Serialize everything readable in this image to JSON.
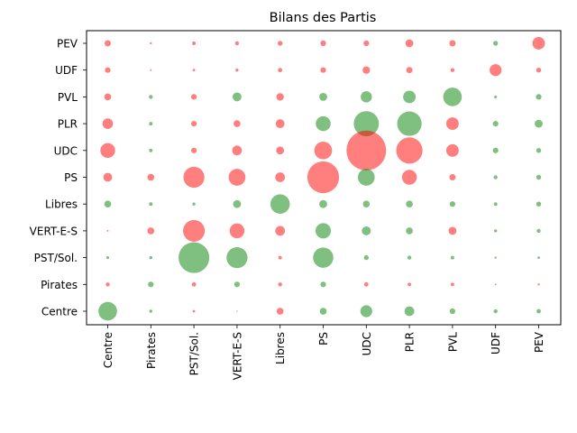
{
  "chart_data": {
    "type": "scatter",
    "title": "Bilans des Partis",
    "xlabel": "",
    "ylabel": "",
    "grid": false,
    "categories_x": [
      "Centre",
      "Pirates",
      "PST/Sol.",
      "VERT-E-S",
      "Libres",
      "PS",
      "UDC",
      "PLR",
      "PVL",
      "UDF",
      "PEV"
    ],
    "categories_y": [
      "Centre",
      "Pirates",
      "PST/Sol.",
      "VERT-E-S",
      "Libres",
      "PS",
      "UDC",
      "PLR",
      "PVL",
      "UDF",
      "PEV"
    ],
    "colors": {
      "positive": "#008000",
      "negative": "#ff0000",
      "opacity": 0.5
    },
    "value_note": "",
    "points": [
      {
        "x": "Centre",
        "y": "PEV",
        "value": -2.5
      },
      {
        "x": "Pirates",
        "y": "PEV",
        "value": -0.3
      },
      {
        "x": "PST/Sol.",
        "y": "PEV",
        "value": -0.8
      },
      {
        "x": "VERT-E-S",
        "y": "PEV",
        "value": -1.0
      },
      {
        "x": "Libres",
        "y": "PEV",
        "value": -1.5
      },
      {
        "x": "PS",
        "y": "PEV",
        "value": -2.0
      },
      {
        "x": "UDC",
        "y": "PEV",
        "value": -2.0
      },
      {
        "x": "PLR",
        "y": "PEV",
        "value": -4.0
      },
      {
        "x": "PVL",
        "y": "PEV",
        "value": -2.5
      },
      {
        "x": "UDF",
        "y": "PEV",
        "value": 1.5
      },
      {
        "x": "PEV",
        "y": "PEV",
        "value": -10.0
      },
      {
        "x": "Centre",
        "y": "UDF",
        "value": -2.0
      },
      {
        "x": "Pirates",
        "y": "UDF",
        "value": -0.2
      },
      {
        "x": "PST/Sol.",
        "y": "UDF",
        "value": -0.4
      },
      {
        "x": "VERT-E-S",
        "y": "UDF",
        "value": -0.6
      },
      {
        "x": "Libres",
        "y": "UDF",
        "value": -1.2
      },
      {
        "x": "PS",
        "y": "UDF",
        "value": -2.0
      },
      {
        "x": "UDC",
        "y": "UDF",
        "value": -3.5
      },
      {
        "x": "PLR",
        "y": "UDF",
        "value": -2.5
      },
      {
        "x": "PVL",
        "y": "UDF",
        "value": -1.0
      },
      {
        "x": "UDF",
        "y": "UDF",
        "value": -9.0
      },
      {
        "x": "PEV",
        "y": "UDF",
        "value": -1.5
      },
      {
        "x": "Centre",
        "y": "PVL",
        "value": -3.0
      },
      {
        "x": "Pirates",
        "y": "PVL",
        "value": 1.0
      },
      {
        "x": "PST/Sol.",
        "y": "PVL",
        "value": -2.0
      },
      {
        "x": "VERT-E-S",
        "y": "PVL",
        "value": 5.0
      },
      {
        "x": "Libres",
        "y": "PVL",
        "value": -3.5
      },
      {
        "x": "PS",
        "y": "PVL",
        "value": 4.0
      },
      {
        "x": "UDC",
        "y": "PVL",
        "value": 8.0
      },
      {
        "x": "PLR",
        "y": "PVL",
        "value": 10.0
      },
      {
        "x": "PVL",
        "y": "PVL",
        "value": 22.0
      },
      {
        "x": "UDF",
        "y": "PVL",
        "value": 0.5
      },
      {
        "x": "PEV",
        "y": "PVL",
        "value": 2.0
      },
      {
        "x": "Centre",
        "y": "PLR",
        "value": -7.0
      },
      {
        "x": "Pirates",
        "y": "PLR",
        "value": 0.8
      },
      {
        "x": "PST/Sol.",
        "y": "PLR",
        "value": -2.0
      },
      {
        "x": "VERT-E-S",
        "y": "PLR",
        "value": -3.0
      },
      {
        "x": "Libres",
        "y": "PLR",
        "value": -5.0
      },
      {
        "x": "PS",
        "y": "PLR",
        "value": 14.0
      },
      {
        "x": "UDC",
        "y": "PLR",
        "value": 40.0
      },
      {
        "x": "PLR",
        "y": "PLR",
        "value": 38.0
      },
      {
        "x": "PVL",
        "y": "PLR",
        "value": -10.0
      },
      {
        "x": "UDF",
        "y": "PLR",
        "value": 2.0
      },
      {
        "x": "PEV",
        "y": "PLR",
        "value": 4.0
      },
      {
        "x": "Centre",
        "y": "UDC",
        "value": -14.0
      },
      {
        "x": "Pirates",
        "y": "UDC",
        "value": 0.8
      },
      {
        "x": "PST/Sol.",
        "y": "UDC",
        "value": -2.0
      },
      {
        "x": "VERT-E-S",
        "y": "UDC",
        "value": -6.0
      },
      {
        "x": "Libres",
        "y": "UDC",
        "value": -4.0
      },
      {
        "x": "PS",
        "y": "UDC",
        "value": -20.0
      },
      {
        "x": "UDC",
        "y": "UDC",
        "value": -100.0
      },
      {
        "x": "PLR",
        "y": "UDC",
        "value": -44.0
      },
      {
        "x": "PVL",
        "y": "UDC",
        "value": -10.0
      },
      {
        "x": "UDF",
        "y": "UDC",
        "value": 2.0
      },
      {
        "x": "PEV",
        "y": "UDC",
        "value": 1.5
      },
      {
        "x": "Centre",
        "y": "PS",
        "value": -5.0
      },
      {
        "x": "Pirates",
        "y": "PS",
        "value": -3.0
      },
      {
        "x": "PST/Sol.",
        "y": "PS",
        "value": -28.0
      },
      {
        "x": "VERT-E-S",
        "y": "PS",
        "value": -18.0
      },
      {
        "x": "Libres",
        "y": "PS",
        "value": -6.0
      },
      {
        "x": "PS",
        "y": "PS",
        "value": -64.0
      },
      {
        "x": "UDC",
        "y": "PS",
        "value": 18.0
      },
      {
        "x": "PLR",
        "y": "PS",
        "value": -14.0
      },
      {
        "x": "PVL",
        "y": "PS",
        "value": -2.5
      },
      {
        "x": "UDF",
        "y": "PS",
        "value": 1.0
      },
      {
        "x": "PEV",
        "y": "PS",
        "value": 1.5
      },
      {
        "x": "Centre",
        "y": "Libres",
        "value": 3.0
      },
      {
        "x": "Pirates",
        "y": "Libres",
        "value": 0.8
      },
      {
        "x": "PST/Sol.",
        "y": "Libres",
        "value": 0.6
      },
      {
        "x": "VERT-E-S",
        "y": "Libres",
        "value": 4.0
      },
      {
        "x": "Libres",
        "y": "Libres",
        "value": 24.0
      },
      {
        "x": "PS",
        "y": "Libres",
        "value": 4.0
      },
      {
        "x": "UDC",
        "y": "Libres",
        "value": 3.0
      },
      {
        "x": "PLR",
        "y": "Libres",
        "value": 3.0
      },
      {
        "x": "PVL",
        "y": "Libres",
        "value": 2.0
      },
      {
        "x": "UDF",
        "y": "Libres",
        "value": 0.8
      },
      {
        "x": "PEV",
        "y": "Libres",
        "value": 1.5
      },
      {
        "x": "Centre",
        "y": "VERT-E-S",
        "value": -0.2
      },
      {
        "x": "Pirates",
        "y": "VERT-E-S",
        "value": -3.0
      },
      {
        "x": "PST/Sol.",
        "y": "VERT-E-S",
        "value": -30.0
      },
      {
        "x": "VERT-E-S",
        "y": "VERT-E-S",
        "value": -14.0
      },
      {
        "x": "Libres",
        "y": "VERT-E-S",
        "value": -6.0
      },
      {
        "x": "PS",
        "y": "VERT-E-S",
        "value": 15.0
      },
      {
        "x": "UDC",
        "y": "VERT-E-S",
        "value": 5.0
      },
      {
        "x": "PLR",
        "y": "VERT-E-S",
        "value": 3.0
      },
      {
        "x": "PVL",
        "y": "VERT-E-S",
        "value": -4.0
      },
      {
        "x": "UDF",
        "y": "VERT-E-S",
        "value": 0.6
      },
      {
        "x": "PEV",
        "y": "VERT-E-S",
        "value": 1.0
      },
      {
        "x": "Centre",
        "y": "PST/Sol.",
        "value": 0.5
      },
      {
        "x": "Pirates",
        "y": "PST/Sol.",
        "value": 0.6
      },
      {
        "x": "PST/Sol.",
        "y": "PST/Sol.",
        "value": 60.0
      },
      {
        "x": "VERT-E-S",
        "y": "PST/Sol.",
        "value": 28.0
      },
      {
        "x": "Libres",
        "y": "PST/Sol.",
        "value": -0.8
      },
      {
        "x": "PS",
        "y": "PST/Sol.",
        "value": 26.0
      },
      {
        "x": "UDC",
        "y": "PST/Sol.",
        "value": 1.5
      },
      {
        "x": "PLR",
        "y": "PST/Sol.",
        "value": 1.0
      },
      {
        "x": "PVL",
        "y": "PST/Sol.",
        "value": 0.8
      },
      {
        "x": "UDF",
        "y": "PST/Sol.",
        "value": 0.3
      },
      {
        "x": "PEV",
        "y": "PST/Sol.",
        "value": 0.4
      },
      {
        "x": "Centre",
        "y": "Pirates",
        "value": -1.0
      },
      {
        "x": "Pirates",
        "y": "Pirates",
        "value": 2.0
      },
      {
        "x": "PST/Sol.",
        "y": "Pirates",
        "value": -1.2
      },
      {
        "x": "VERT-E-S",
        "y": "Pirates",
        "value": 2.0
      },
      {
        "x": "Libres",
        "y": "Pirates",
        "value": -1.0
      },
      {
        "x": "PS",
        "y": "Pirates",
        "value": 2.0
      },
      {
        "x": "UDC",
        "y": "Pirates",
        "value": -1.2
      },
      {
        "x": "PLR",
        "y": "Pirates",
        "value": -0.8
      },
      {
        "x": "PVL",
        "y": "Pirates",
        "value": -0.8
      },
      {
        "x": "UDF",
        "y": "Pirates",
        "value": 0.2
      },
      {
        "x": "PEV",
        "y": "Pirates",
        "value": -0.3
      },
      {
        "x": "Centre",
        "y": "Centre",
        "value": 22.0
      },
      {
        "x": "Pirates",
        "y": "Centre",
        "value": 0.6
      },
      {
        "x": "PST/Sol.",
        "y": "Centre",
        "value": -0.4
      },
      {
        "x": "VERT-E-S",
        "y": "Centre",
        "value": 0.1
      },
      {
        "x": "Libres",
        "y": "Centre",
        "value": -3.0
      },
      {
        "x": "PS",
        "y": "Centre",
        "value": 3.0
      },
      {
        "x": "UDC",
        "y": "Centre",
        "value": 9.0
      },
      {
        "x": "PLR",
        "y": "Centre",
        "value": 6.0
      },
      {
        "x": "PVL",
        "y": "Centre",
        "value": 2.0
      },
      {
        "x": "UDF",
        "y": "Centre",
        "value": 1.0
      },
      {
        "x": "PEV",
        "y": "Centre",
        "value": 1.2
      }
    ]
  }
}
